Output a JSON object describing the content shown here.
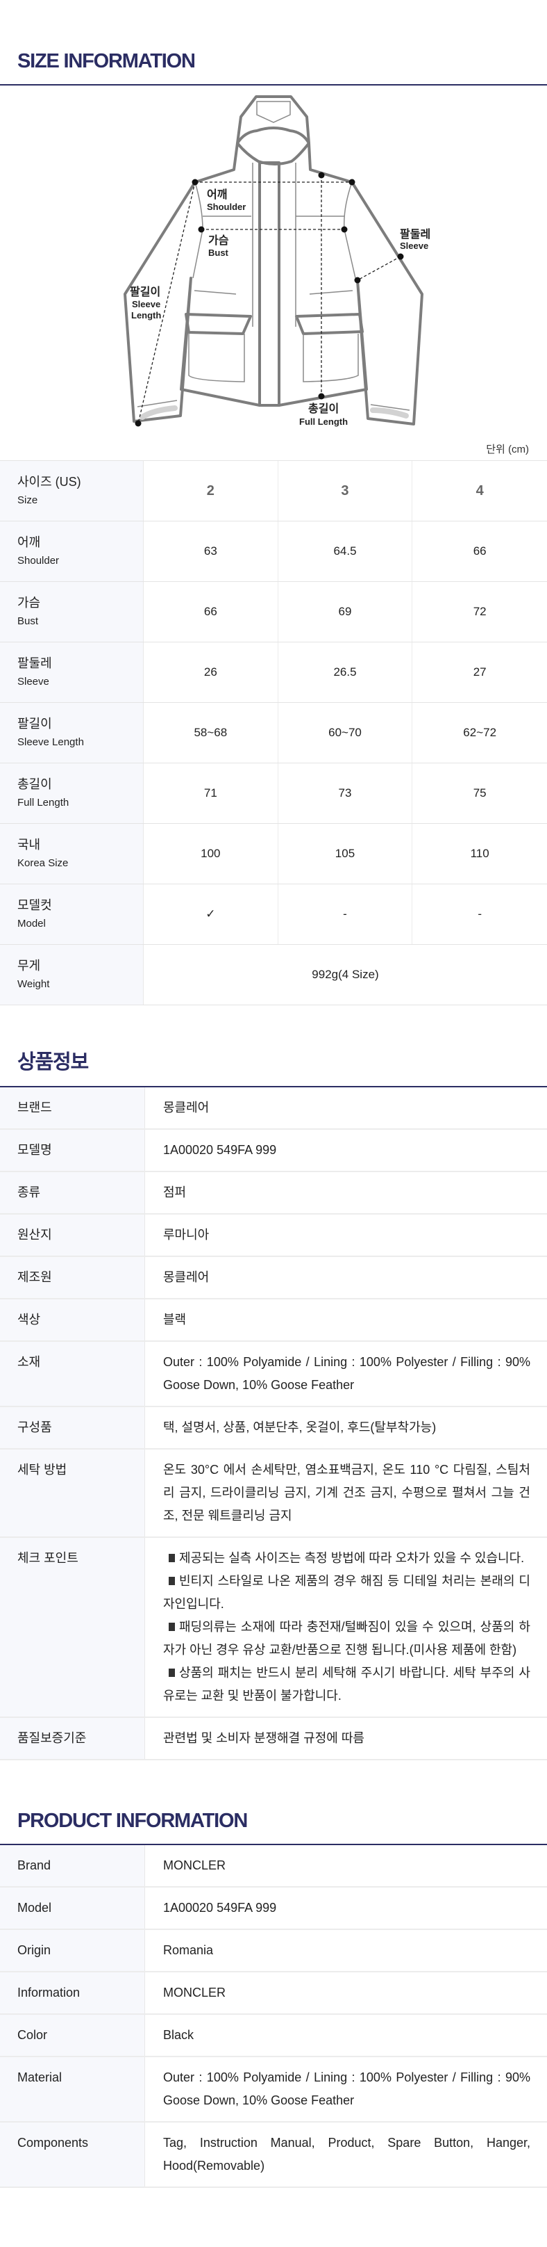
{
  "size_info": {
    "title": "SIZE INFORMATION",
    "unit": "단위 (cm)",
    "diagram_labels": {
      "shoulder_ko": "어깨",
      "shoulder_en": "Shoulder",
      "bust_ko": "가슴",
      "bust_en": "Bust",
      "sleeve_ko": "팔둘레",
      "sleeve_en": "Sleeve",
      "sleeve_length_ko": "팔길이",
      "sleeve_length_en1": "Sleeve",
      "sleeve_length_en2": "Length",
      "full_length_ko": "총길이",
      "full_length_en": "Full Length"
    },
    "header": {
      "ko": "사이즈 (US)",
      "en": "Size",
      "sizes": [
        "2",
        "3",
        "4"
      ]
    },
    "rows": [
      {
        "ko": "어깨",
        "en": "Shoulder",
        "values": [
          "63",
          "64.5",
          "66"
        ]
      },
      {
        "ko": "가슴",
        "en": "Bust",
        "values": [
          "66",
          "69",
          "72"
        ]
      },
      {
        "ko": "팔둘레",
        "en": "Sleeve",
        "values": [
          "26",
          "26.5",
          "27"
        ]
      },
      {
        "ko": "팔길이",
        "en": "Sleeve Length",
        "values": [
          "58~68",
          "60~70",
          "62~72"
        ]
      },
      {
        "ko": "총길이",
        "en": "Full Length",
        "values": [
          "71",
          "73",
          "75"
        ]
      },
      {
        "ko": "국내",
        "en": "Korea Size",
        "values": [
          "100",
          "105",
          "110"
        ]
      },
      {
        "ko": "모델컷",
        "en": "Model",
        "values": [
          "✓",
          "-",
          "-"
        ]
      }
    ],
    "weight": {
      "ko": "무게",
      "en": "Weight",
      "value": "992g(4 Size)"
    }
  },
  "product_ko": {
    "title": "상품정보",
    "rows": [
      {
        "label": "브랜드",
        "value": "몽클레어"
      },
      {
        "label": "모델명",
        "value": "1A00020 549FA 999"
      },
      {
        "label": "종류",
        "value": "점퍼"
      },
      {
        "label": "원산지",
        "value": "루마니아"
      },
      {
        "label": "제조원",
        "value": "몽클레어"
      },
      {
        "label": "색상",
        "value": "블랙"
      },
      {
        "label": "소재",
        "value": "Outer : 100% Polyamide / Lining : 100% Polyester / Filling : 90% Goose Down, 10% Goose Feather"
      },
      {
        "label": "구성품",
        "value": "택, 설명서, 상품, 여분단추, 옷걸이, 후드(탈부착가능)"
      },
      {
        "label": "세탁 방법",
        "value": "온도 30°C 에서 손세탁만, 염소표백금지, 온도 110 °C 다림질, 스팀처리 금지, 드라이클리닝 금지, 기계 건조 금지, 수평으로 펼쳐서 그늘 건조, 전문 웨트클리닝 금지"
      }
    ],
    "checkpoint": {
      "label": "체크 포인트",
      "items": [
        "제공되는 실측 사이즈는 측정 방법에 따라 오차가 있을 수 있습니다.",
        "빈티지 스타일로 나온 제품의 경우 해짐 등 디테일 처리는 본래의 디자인입니다.",
        "패딩의류는 소재에 따라 충전재/털빠짐이 있을 수 있으며, 상품의 하자가 아닌 경우 유상 교환/반품으로 진행 됩니다.(미사용 제품에 한함)",
        "상품의 패치는 반드시 분리 세탁해 주시기 바랍니다. 세탁 부주의 사유로는 교환 및 반품이 불가합니다."
      ]
    },
    "quality": {
      "label": "품질보증기준",
      "value": "관련법 및 소비자 분쟁해결 규정에 따름"
    }
  },
  "product_en": {
    "title": "PRODUCT INFORMATION",
    "rows": [
      {
        "label": "Brand",
        "value": "MONCLER"
      },
      {
        "label": "Model",
        "value": "1A00020 549FA 999"
      },
      {
        "label": "Origin",
        "value": "Romania"
      },
      {
        "label": "Information",
        "value": "MONCLER"
      },
      {
        "label": "Color",
        "value": "Black"
      },
      {
        "label": "Material",
        "value": "Outer : 100% Polyamide / Lining : 100% Polyester / Filling : 90% Goose Down, 10% Goose Feather"
      },
      {
        "label": "Components",
        "value": "Tag, Instruction Manual, Product, Spare Button, Hanger, Hood(Removable)"
      }
    ]
  },
  "colors": {
    "accent": "#2b2d63",
    "label_bg": "#f7f8fc",
    "border": "#e4e4e4",
    "outline": "#7a7a7a"
  }
}
